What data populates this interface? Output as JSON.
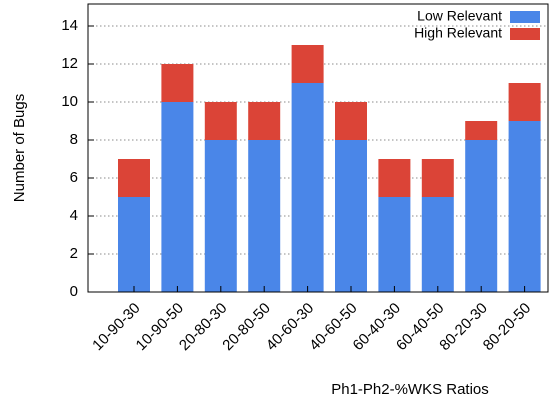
{
  "chart_data": {
    "type": "stacked_bar",
    "x_label": "Ph1-Ph2-%WKS Ratios",
    "y_label": "Number of Bugs",
    "categories": [
      "10-90-30",
      "10-90-50",
      "20-80-30",
      "20-80-50",
      "40-60-30",
      "40-60-50",
      "60-40-30",
      "60-40-50",
      "80-20-30",
      "80-20-50"
    ],
    "series": [
      {
        "name": "Low Relevant",
        "color": "#4a86e8",
        "values": [
          5,
          10,
          8,
          8,
          11,
          8,
          5,
          5,
          8,
          9
        ]
      },
      {
        "name": "High Relevant",
        "color": "#db4437",
        "values": [
          2,
          2,
          2,
          2,
          2,
          2,
          2,
          2,
          1,
          2
        ]
      }
    ],
    "ylim": [
      0,
      15
    ],
    "yticks": [
      0,
      2,
      4,
      6,
      8,
      10,
      12,
      14
    ],
    "grid": true,
    "legend": "upper right"
  }
}
